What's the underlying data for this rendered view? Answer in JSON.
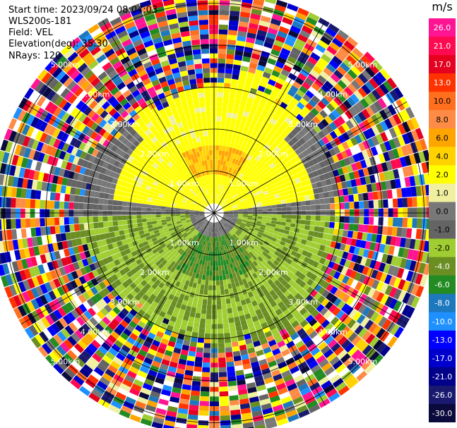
{
  "header": {
    "start_time": "Start time: 2023/09/24 08:04:03",
    "instrument": "WLS200s-181",
    "field": "Field: VEL",
    "elevation": "Elevation(deg): 35.30",
    "nrays": "NRays: 120"
  },
  "chart_data": {
    "type": "heatmap",
    "projection": "polar-ppi",
    "nrays": 120,
    "range_rings_km": [
      1.0,
      2.0,
      3.0,
      4.0,
      5.0
    ],
    "range_ring_labels": [
      "1.00km",
      "2.00km",
      "3.00km",
      "4.00km",
      "5.00km"
    ],
    "max_range_km": 5.3,
    "azimuth_lines_deg": [
      0,
      30,
      60,
      90,
      120,
      150,
      180,
      210,
      240,
      270,
      300,
      330
    ],
    "colorbar": {
      "title": "m/s",
      "tick_labels": [
        "26.0",
        "21.0",
        "17.0",
        "13.0",
        "10.0",
        "8.0",
        "6.0",
        "4.0",
        "2.0",
        "1.0",
        "0.0",
        "-1.0",
        "-2.0",
        "-4.0",
        "-6.0",
        "-8.0",
        "-10.0",
        "-13.0",
        "-17.0",
        "-21.0",
        "-26.0",
        "-30.0"
      ],
      "colors": [
        "#ff1493",
        "#ff0a50",
        "#e4001e",
        "#ff3300",
        "#ff6f1e",
        "#ff8c46",
        "#ffa500",
        "#ffd200",
        "#ffff00",
        "#f0f0a0",
        "#787878",
        "#646464",
        "#a0cd32",
        "#6b8e23",
        "#228b22",
        "#1e78be",
        "#1e90ff",
        "#0000ff",
        "#0000cd",
        "#00008b",
        "#191970",
        "#0a0a3c"
      ]
    }
  }
}
